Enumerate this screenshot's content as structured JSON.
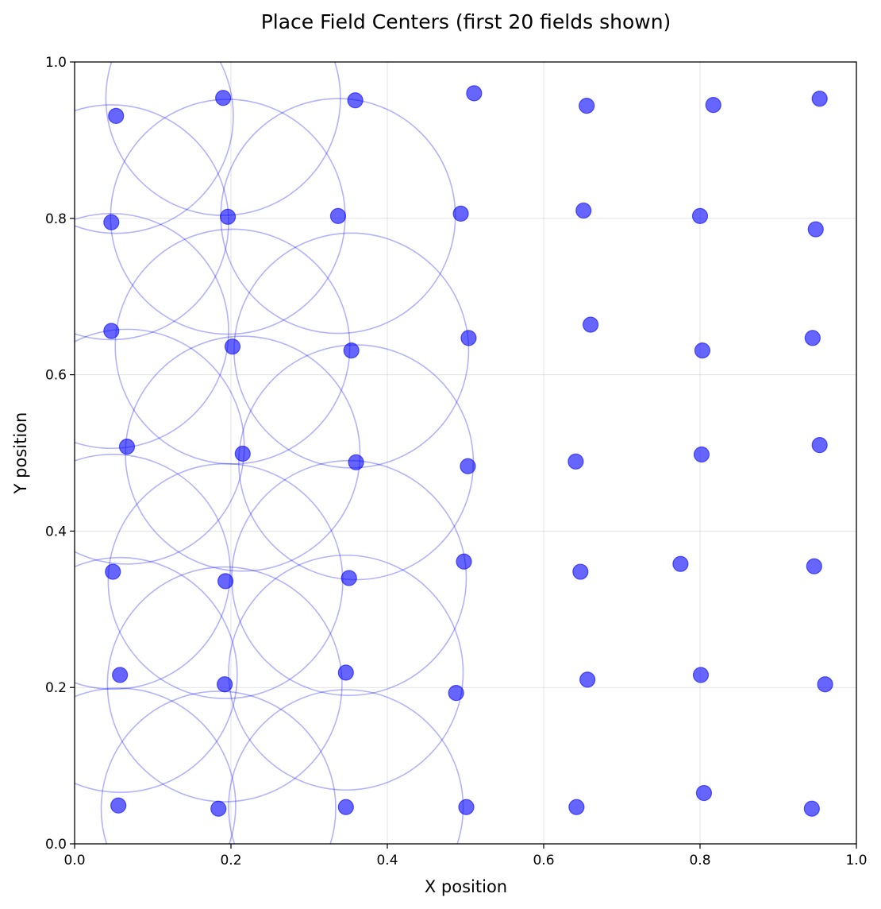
{
  "chart_data": {
    "type": "scatter",
    "title": "Place Field Centers (first 20 fields shown)",
    "xlabel": "X position",
    "ylabel": "Y position",
    "xlim": [
      0,
      1
    ],
    "ylim": [
      0,
      1
    ],
    "xticks": [
      "0.0",
      "0.2",
      "0.4",
      "0.6",
      "0.8",
      "1.0"
    ],
    "yticks": [
      "0.0",
      "0.2",
      "0.4",
      "0.6",
      "0.8",
      "1.0"
    ],
    "grid": true,
    "legend": "none",
    "point_color": "#0000ff",
    "point_alpha": 0.6,
    "field_circle_color": "#0000ff",
    "field_circle_alpha": 0.3,
    "field_radius": 0.15,
    "points": [
      {
        "x": 0.053,
        "y": 0.931
      },
      {
        "x": 0.19,
        "y": 0.954
      },
      {
        "x": 0.359,
        "y": 0.951
      },
      {
        "x": 0.511,
        "y": 0.96
      },
      {
        "x": 0.655,
        "y": 0.944
      },
      {
        "x": 0.817,
        "y": 0.945
      },
      {
        "x": 0.953,
        "y": 0.953
      },
      {
        "x": 0.047,
        "y": 0.795
      },
      {
        "x": 0.196,
        "y": 0.802
      },
      {
        "x": 0.337,
        "y": 0.803
      },
      {
        "x": 0.494,
        "y": 0.806
      },
      {
        "x": 0.651,
        "y": 0.81
      },
      {
        "x": 0.8,
        "y": 0.803
      },
      {
        "x": 0.948,
        "y": 0.786
      },
      {
        "x": 0.047,
        "y": 0.656
      },
      {
        "x": 0.202,
        "y": 0.636
      },
      {
        "x": 0.354,
        "y": 0.631
      },
      {
        "x": 0.504,
        "y": 0.647
      },
      {
        "x": 0.66,
        "y": 0.664
      },
      {
        "x": 0.803,
        "y": 0.631
      },
      {
        "x": 0.944,
        "y": 0.647
      },
      {
        "x": 0.067,
        "y": 0.508
      },
      {
        "x": 0.215,
        "y": 0.499
      },
      {
        "x": 0.36,
        "y": 0.488
      },
      {
        "x": 0.503,
        "y": 0.483
      },
      {
        "x": 0.641,
        "y": 0.489
      },
      {
        "x": 0.802,
        "y": 0.498
      },
      {
        "x": 0.953,
        "y": 0.51
      },
      {
        "x": 0.049,
        "y": 0.348
      },
      {
        "x": 0.193,
        "y": 0.336
      },
      {
        "x": 0.351,
        "y": 0.34
      },
      {
        "x": 0.498,
        "y": 0.361
      },
      {
        "x": 0.647,
        "y": 0.348
      },
      {
        "x": 0.775,
        "y": 0.358
      },
      {
        "x": 0.946,
        "y": 0.355
      },
      {
        "x": 0.058,
        "y": 0.216
      },
      {
        "x": 0.192,
        "y": 0.204
      },
      {
        "x": 0.347,
        "y": 0.219
      },
      {
        "x": 0.488,
        "y": 0.193
      },
      {
        "x": 0.656,
        "y": 0.21
      },
      {
        "x": 0.801,
        "y": 0.216
      },
      {
        "x": 0.96,
        "y": 0.204
      },
      {
        "x": 0.056,
        "y": 0.049
      },
      {
        "x": 0.184,
        "y": 0.045
      },
      {
        "x": 0.347,
        "y": 0.047
      },
      {
        "x": 0.501,
        "y": 0.047
      },
      {
        "x": 0.642,
        "y": 0.047
      },
      {
        "x": 0.805,
        "y": 0.065
      },
      {
        "x": 0.943,
        "y": 0.045
      }
    ],
    "place_field_circles": [
      {
        "x": 0.053,
        "y": 0.931
      },
      {
        "x": 0.19,
        "y": 0.954
      },
      {
        "x": 0.047,
        "y": 0.795
      },
      {
        "x": 0.196,
        "y": 0.802
      },
      {
        "x": 0.337,
        "y": 0.803
      },
      {
        "x": 0.047,
        "y": 0.656
      },
      {
        "x": 0.202,
        "y": 0.636
      },
      {
        "x": 0.354,
        "y": 0.631
      },
      {
        "x": 0.067,
        "y": 0.508
      },
      {
        "x": 0.215,
        "y": 0.499
      },
      {
        "x": 0.36,
        "y": 0.488
      },
      {
        "x": 0.049,
        "y": 0.348
      },
      {
        "x": 0.193,
        "y": 0.336
      },
      {
        "x": 0.351,
        "y": 0.34
      },
      {
        "x": 0.058,
        "y": 0.216
      },
      {
        "x": 0.192,
        "y": 0.204
      },
      {
        "x": 0.347,
        "y": 0.219
      },
      {
        "x": 0.056,
        "y": 0.049
      },
      {
        "x": 0.184,
        "y": 0.045
      },
      {
        "x": 0.347,
        "y": 0.047
      }
    ]
  }
}
